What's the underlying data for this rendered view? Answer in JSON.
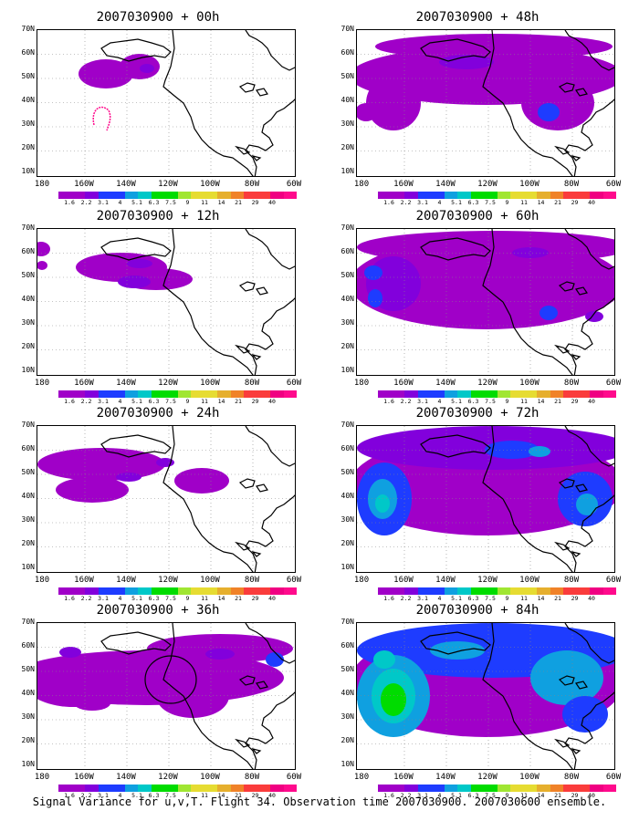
{
  "caption": "Signal Variance for u,v,T. Flight 34. Observation time 2007030900. 2007030600 ensemble.",
  "y_ticks": [
    "70N",
    "60N",
    "50N",
    "40N",
    "30N",
    "20N",
    "10N"
  ],
  "x_ticks": [
    "180",
    "160W",
    "140W",
    "120W",
    "100W",
    "80W",
    "60W"
  ],
  "colorbar": {
    "labels": [
      "1.6",
      "2.2",
      "3.1",
      "4",
      "5.1",
      "6.3",
      "7.5",
      "9",
      "11",
      "14",
      "21",
      "29",
      "40"
    ],
    "colors": [
      "#a000c8",
      "#8200dc",
      "#1e3cff",
      "#0fa0e0",
      "#00c8c8",
      "#00dc00",
      "#a0e632",
      "#e6dc32",
      "#e6af2d",
      "#f08228",
      "#fa3c3c",
      "#f00082",
      "#ff0a8c"
    ]
  },
  "panels": [
    {
      "title": "2007030900 + 00h",
      "intensity": 0
    },
    {
      "title": "2007030900 + 48h",
      "intensity": 4
    },
    {
      "title": "2007030900 + 12h",
      "intensity": 1
    },
    {
      "title": "2007030900 + 60h",
      "intensity": 5
    },
    {
      "title": "2007030900 + 24h",
      "intensity": 2
    },
    {
      "title": "2007030900 + 72h",
      "intensity": 6
    },
    {
      "title": "2007030900 + 36h",
      "intensity": 3
    },
    {
      "title": "2007030900 + 84h",
      "intensity": 7
    }
  ]
}
